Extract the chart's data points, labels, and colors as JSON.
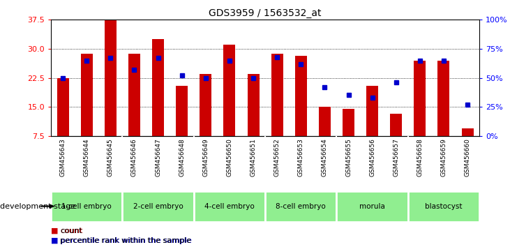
{
  "title": "GDS3959 / 1563532_at",
  "samples": [
    "GSM456643",
    "GSM456644",
    "GSM456645",
    "GSM456646",
    "GSM456647",
    "GSM456648",
    "GSM456649",
    "GSM456650",
    "GSM456651",
    "GSM456652",
    "GSM456653",
    "GSM456654",
    "GSM456655",
    "GSM456656",
    "GSM456657",
    "GSM456658",
    "GSM456659",
    "GSM456660"
  ],
  "counts": [
    22.5,
    28.8,
    37.5,
    28.7,
    32.5,
    20.5,
    23.5,
    31.0,
    23.5,
    28.8,
    28.2,
    15.0,
    14.5,
    20.5,
    13.2,
    27.0,
    27.0,
    9.5
  ],
  "percentile": [
    50,
    65,
    67,
    57,
    67,
    52,
    50,
    65,
    50,
    68,
    62,
    42,
    35,
    33,
    46,
    65,
    65,
    27
  ],
  "ylim_left": [
    7.5,
    37.5
  ],
  "ylim_right": [
    0,
    100
  ],
  "yticks_left": [
    7.5,
    15.0,
    22.5,
    30.0,
    37.5
  ],
  "yticks_right": [
    0,
    25,
    50,
    75,
    100
  ],
  "groups": [
    {
      "label": "1-cell embryo",
      "start": 0,
      "end": 3,
      "color": "#90EE90"
    },
    {
      "label": "2-cell embryo",
      "start": 3,
      "end": 6,
      "color": "#90EE90"
    },
    {
      "label": "4-cell embryo",
      "start": 6,
      "end": 9,
      "color": "#90EE90"
    },
    {
      "label": "8-cell embryo",
      "start": 9,
      "end": 12,
      "color": "#90EE90"
    },
    {
      "label": "morula",
      "start": 12,
      "end": 15,
      "color": "#90EE90"
    },
    {
      "label": "blastocyst",
      "start": 15,
      "end": 18,
      "color": "#90EE90"
    }
  ],
  "bar_color": "#CC0000",
  "dot_color": "#0000CC",
  "bar_width": 0.5,
  "xlabel_area_color": "#C8C8C8",
  "group_label_color": "#90EE90",
  "bg_color": "#FFFFFF",
  "legend_count_label": "count",
  "legend_pct_label": "percentile rank within the sample",
  "dev_stage_label": "development stage"
}
